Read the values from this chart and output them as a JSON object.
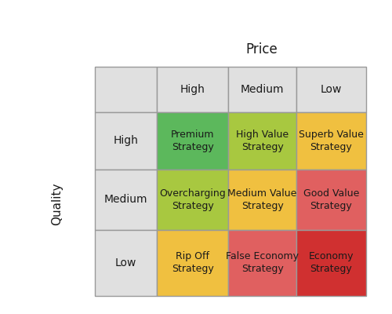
{
  "title": "Price",
  "ylabel": "Quality",
  "price_labels": [
    "High",
    "Medium",
    "Low"
  ],
  "quality_labels": [
    "High",
    "Medium",
    "Low"
  ],
  "cells": [
    [
      {
        "text": "Premium\nStrategy",
        "color": "#5cb85c"
      },
      {
        "text": "High Value\nStrategy",
        "color": "#a8c840"
      },
      {
        "text": "Superb Value\nStrategy",
        "color": "#f0c040"
      }
    ],
    [
      {
        "text": "Overcharging\nStrategy",
        "color": "#a8c840"
      },
      {
        "text": "Medium Value\nStrategy",
        "color": "#f0c040"
      },
      {
        "text": "Good Value\nStrategy",
        "color": "#e06060"
      }
    ],
    [
      {
        "text": "Rip Off\nStrategy",
        "color": "#f0c040"
      },
      {
        "text": "False Economy\nStrategy",
        "color": "#e06060"
      },
      {
        "text": "Economy\nStrategy",
        "color": "#d03030"
      }
    ]
  ],
  "header_bg": "#e0e0e0",
  "row_label_bg": "#e0e0e0",
  "border_color": "#999999",
  "text_color": "#1a1a1a",
  "header_fontsize": 10,
  "cell_fontsize": 9,
  "title_fontsize": 12,
  "ylabel_fontsize": 11,
  "background_color": "#ffffff"
}
